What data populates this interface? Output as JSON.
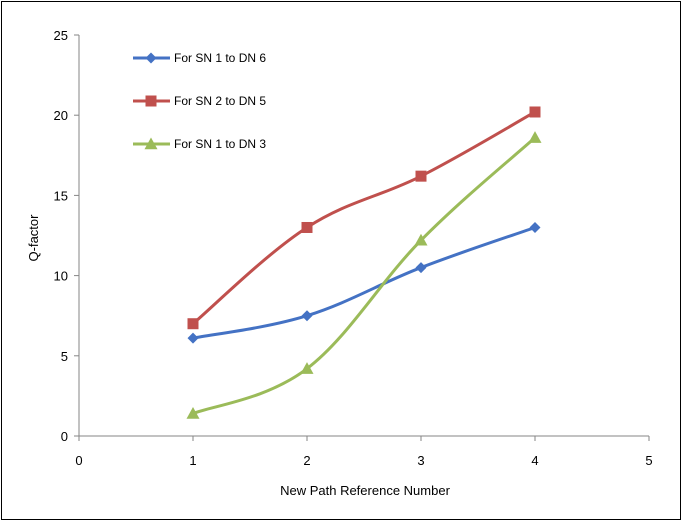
{
  "chart_data": {
    "type": "line",
    "title": "",
    "xlabel": "New Path Reference Number",
    "ylabel": "Q-factor",
    "xlim": [
      0,
      5
    ],
    "ylim": [
      0,
      25
    ],
    "x_ticks": [
      0,
      1,
      2,
      3,
      4,
      5
    ],
    "y_ticks": [
      0,
      5,
      10,
      15,
      20,
      25
    ],
    "grid": false,
    "legend_position": "top-left",
    "series": [
      {
        "name": "For SN 1 to DN 6",
        "x": [
          1,
          2,
          3,
          4
        ],
        "values": [
          6.1,
          7.5,
          10.5,
          13.0
        ],
        "color": "#4472C4",
        "marker": "diamond"
      },
      {
        "name": "For SN 2 to DN 5",
        "x": [
          1,
          2,
          3,
          4
        ],
        "values": [
          7.0,
          13.0,
          16.2,
          20.2
        ],
        "color": "#C0504D",
        "marker": "square"
      },
      {
        "name": "For SN 1 to DN 3",
        "x": [
          1,
          2,
          3,
          4
        ],
        "values": [
          1.4,
          4.2,
          12.2,
          18.6
        ],
        "color": "#9BBB59",
        "marker": "triangle"
      }
    ]
  }
}
